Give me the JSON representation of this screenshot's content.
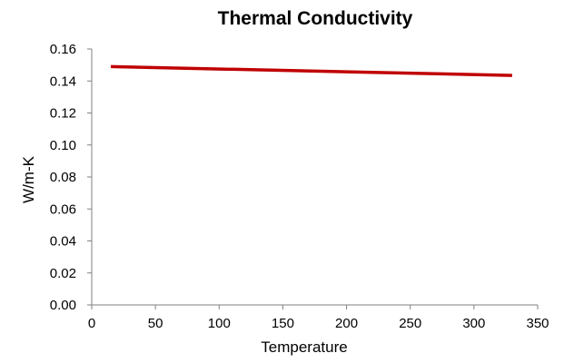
{
  "chart_data": {
    "type": "line",
    "title": "Thermal Conductivity",
    "xlabel": "Temperature",
    "ylabel": "W/m-K",
    "xlim": [
      0,
      350
    ],
    "ylim": [
      0,
      0.16
    ],
    "xticks": [
      "0",
      "50",
      "100",
      "150",
      "200",
      "250",
      "300",
      "350"
    ],
    "yticks": [
      "0.00",
      "0.02",
      "0.04",
      "0.06",
      "0.08",
      "0.10",
      "0.12",
      "0.14",
      "0.16"
    ],
    "grid": false,
    "legend": "none",
    "series": [
      {
        "color": "#C00000",
        "x": [
          15,
          330
        ],
        "y": [
          0.149,
          0.1435
        ]
      }
    ]
  }
}
